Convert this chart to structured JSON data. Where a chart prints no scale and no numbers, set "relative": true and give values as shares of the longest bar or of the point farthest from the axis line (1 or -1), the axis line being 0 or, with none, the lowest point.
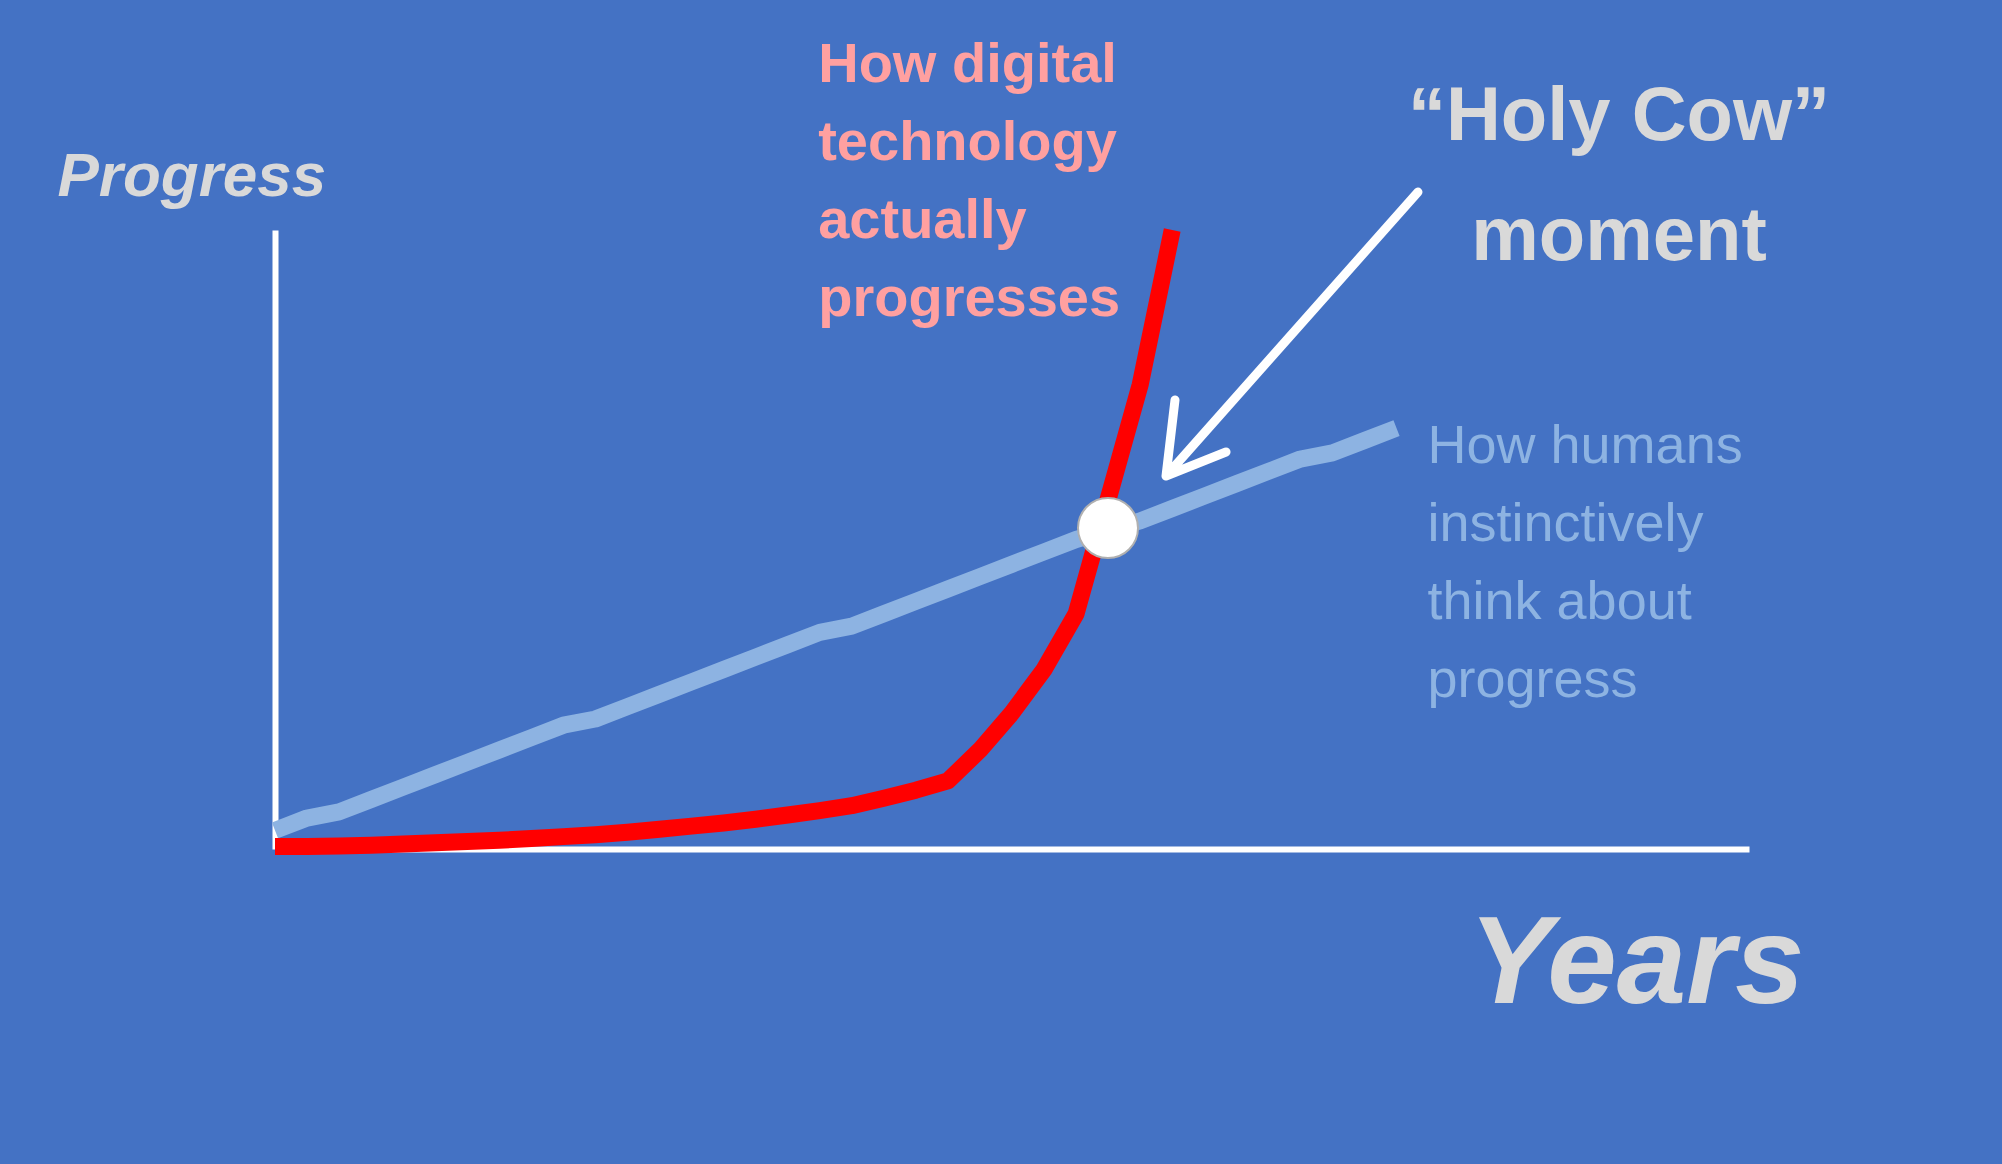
{
  "chart_data": {
    "type": "line",
    "relative": true,
    "tick_labels": false,
    "xlabel": "Years",
    "ylabel": "Progress",
    "annotations": [
      "“Holy Cow” moment"
    ],
    "categories": [
      null,
      null,
      null,
      null,
      null,
      null,
      null,
      null,
      null,
      null,
      null,
      null,
      null,
      null,
      null,
      null,
      null,
      null,
      null,
      null,
      null,
      null,
      null,
      null,
      null,
      null,
      null,
      null,
      null,
      null,
      null,
      null,
      null,
      null,
      null,
      null,
      null,
      null,
      null,
      null,
      null,
      null,
      null,
      null,
      null,
      null,
      null
    ],
    "series": [
      {
        "name": "How humans instinctively think about progress",
        "type": "line",
        "color": "#8db3e2",
        "values": [
          0.03,
          0.05,
          0.06,
          0.08,
          0.1,
          0.12,
          0.14,
          0.16,
          0.18,
          0.2,
          0.21,
          0.23,
          0.25,
          0.27,
          0.29,
          0.31,
          0.33,
          0.35,
          0.36,
          0.38,
          0.4,
          0.42,
          0.44,
          0.46,
          0.48,
          0.5,
          null,
          0.53,
          0.55,
          0.57,
          0.59,
          0.61,
          0.63,
          0.64,
          0.66,
          0.68,
          null,
          null,
          null,
          null,
          null,
          null,
          null,
          null,
          null,
          null,
          null
        ]
      },
      {
        "name": "How digital technology actually progresses",
        "type": "line",
        "color": "#ff0000",
        "values": [
          0.004,
          0.004,
          0.005,
          0.006,
          0.008,
          0.01,
          0.012,
          0.014,
          0.017,
          0.02,
          0.023,
          0.027,
          0.032,
          0.037,
          0.042,
          0.048,
          0.055,
          0.062,
          0.07,
          0.082,
          0.095,
          0.11,
          0.16,
          0.22,
          0.29,
          0.38,
          null,
          0.75,
          1.0,
          null,
          null,
          null,
          null,
          null,
          null,
          null,
          null,
          null,
          null,
          null,
          null,
          null,
          null,
          null,
          null,
          null,
          null
        ]
      }
    ]
  }
}
